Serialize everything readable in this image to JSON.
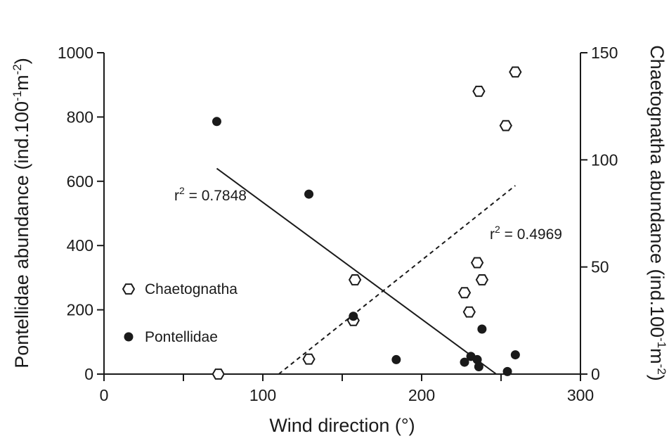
{
  "chart_data": {
    "type": "scatter",
    "xlabel": "Wind direction (°)",
    "ylabel_left": {
      "main": "Pontellidae abundance (ind.100",
      "sup1": "-1",
      "mid": "m",
      "sup2": "-2",
      "end": ")"
    },
    "ylabel_right": {
      "main": "Chaetognatha abundance (ind.100",
      "sup1": "-1",
      "mid": "m",
      "sup2": "-2",
      "end": ")"
    },
    "xlim": [
      0,
      300
    ],
    "ylim_left": [
      0,
      1000
    ],
    "ylim_right": [
      0,
      150
    ],
    "x_ticks": [
      "0",
      "100",
      "200",
      "300"
    ],
    "y_left_ticks": [
      "0",
      "200",
      "400",
      "600",
      "800",
      "1000"
    ],
    "y_right_ticks": [
      "0",
      "50",
      "100",
      "150"
    ],
    "series": [
      {
        "name": "Chaetognatha",
        "axis": "right",
        "marker": "open-hexagon",
        "points": [
          {
            "x": 72,
            "y": 0
          },
          {
            "x": 129,
            "y": 7
          },
          {
            "x": 157,
            "y": 25
          },
          {
            "x": 158,
            "y": 44
          },
          {
            "x": 227,
            "y": 38
          },
          {
            "x": 230,
            "y": 29
          },
          {
            "x": 235,
            "y": 52
          },
          {
            "x": 238,
            "y": 44
          },
          {
            "x": 236,
            "y": 132
          },
          {
            "x": 253,
            "y": 116
          },
          {
            "x": 259,
            "y": 141
          }
        ],
        "fit": {
          "x1": 110,
          "y1": 0,
          "x2": 259,
          "y2": 88,
          "style": "dashed"
        },
        "r2": {
          "prefix": "r",
          "sup": "2",
          "value": " = 0.4969"
        }
      },
      {
        "name": "Pontellidae",
        "axis": "left",
        "marker": "filled-circle",
        "points": [
          {
            "x": 71,
            "y": 786
          },
          {
            "x": 129,
            "y": 560
          },
          {
            "x": 157,
            "y": 180
          },
          {
            "x": 184,
            "y": 45
          },
          {
            "x": 227,
            "y": 37
          },
          {
            "x": 231,
            "y": 55
          },
          {
            "x": 235,
            "y": 45
          },
          {
            "x": 236,
            "y": 23
          },
          {
            "x": 238,
            "y": 140
          },
          {
            "x": 254,
            "y": 8
          },
          {
            "x": 259,
            "y": 60
          }
        ],
        "fit": {
          "x1": 71,
          "y1": 640,
          "x2": 247,
          "y2": 0,
          "style": "solid"
        },
        "r2": {
          "prefix": "r",
          "sup": "2",
          "value": " = 0.7848"
        }
      }
    ],
    "legend": {
      "placement": "lower-left",
      "entries": [
        "Chaetognatha",
        "Pontellidae"
      ]
    },
    "grid": false
  }
}
